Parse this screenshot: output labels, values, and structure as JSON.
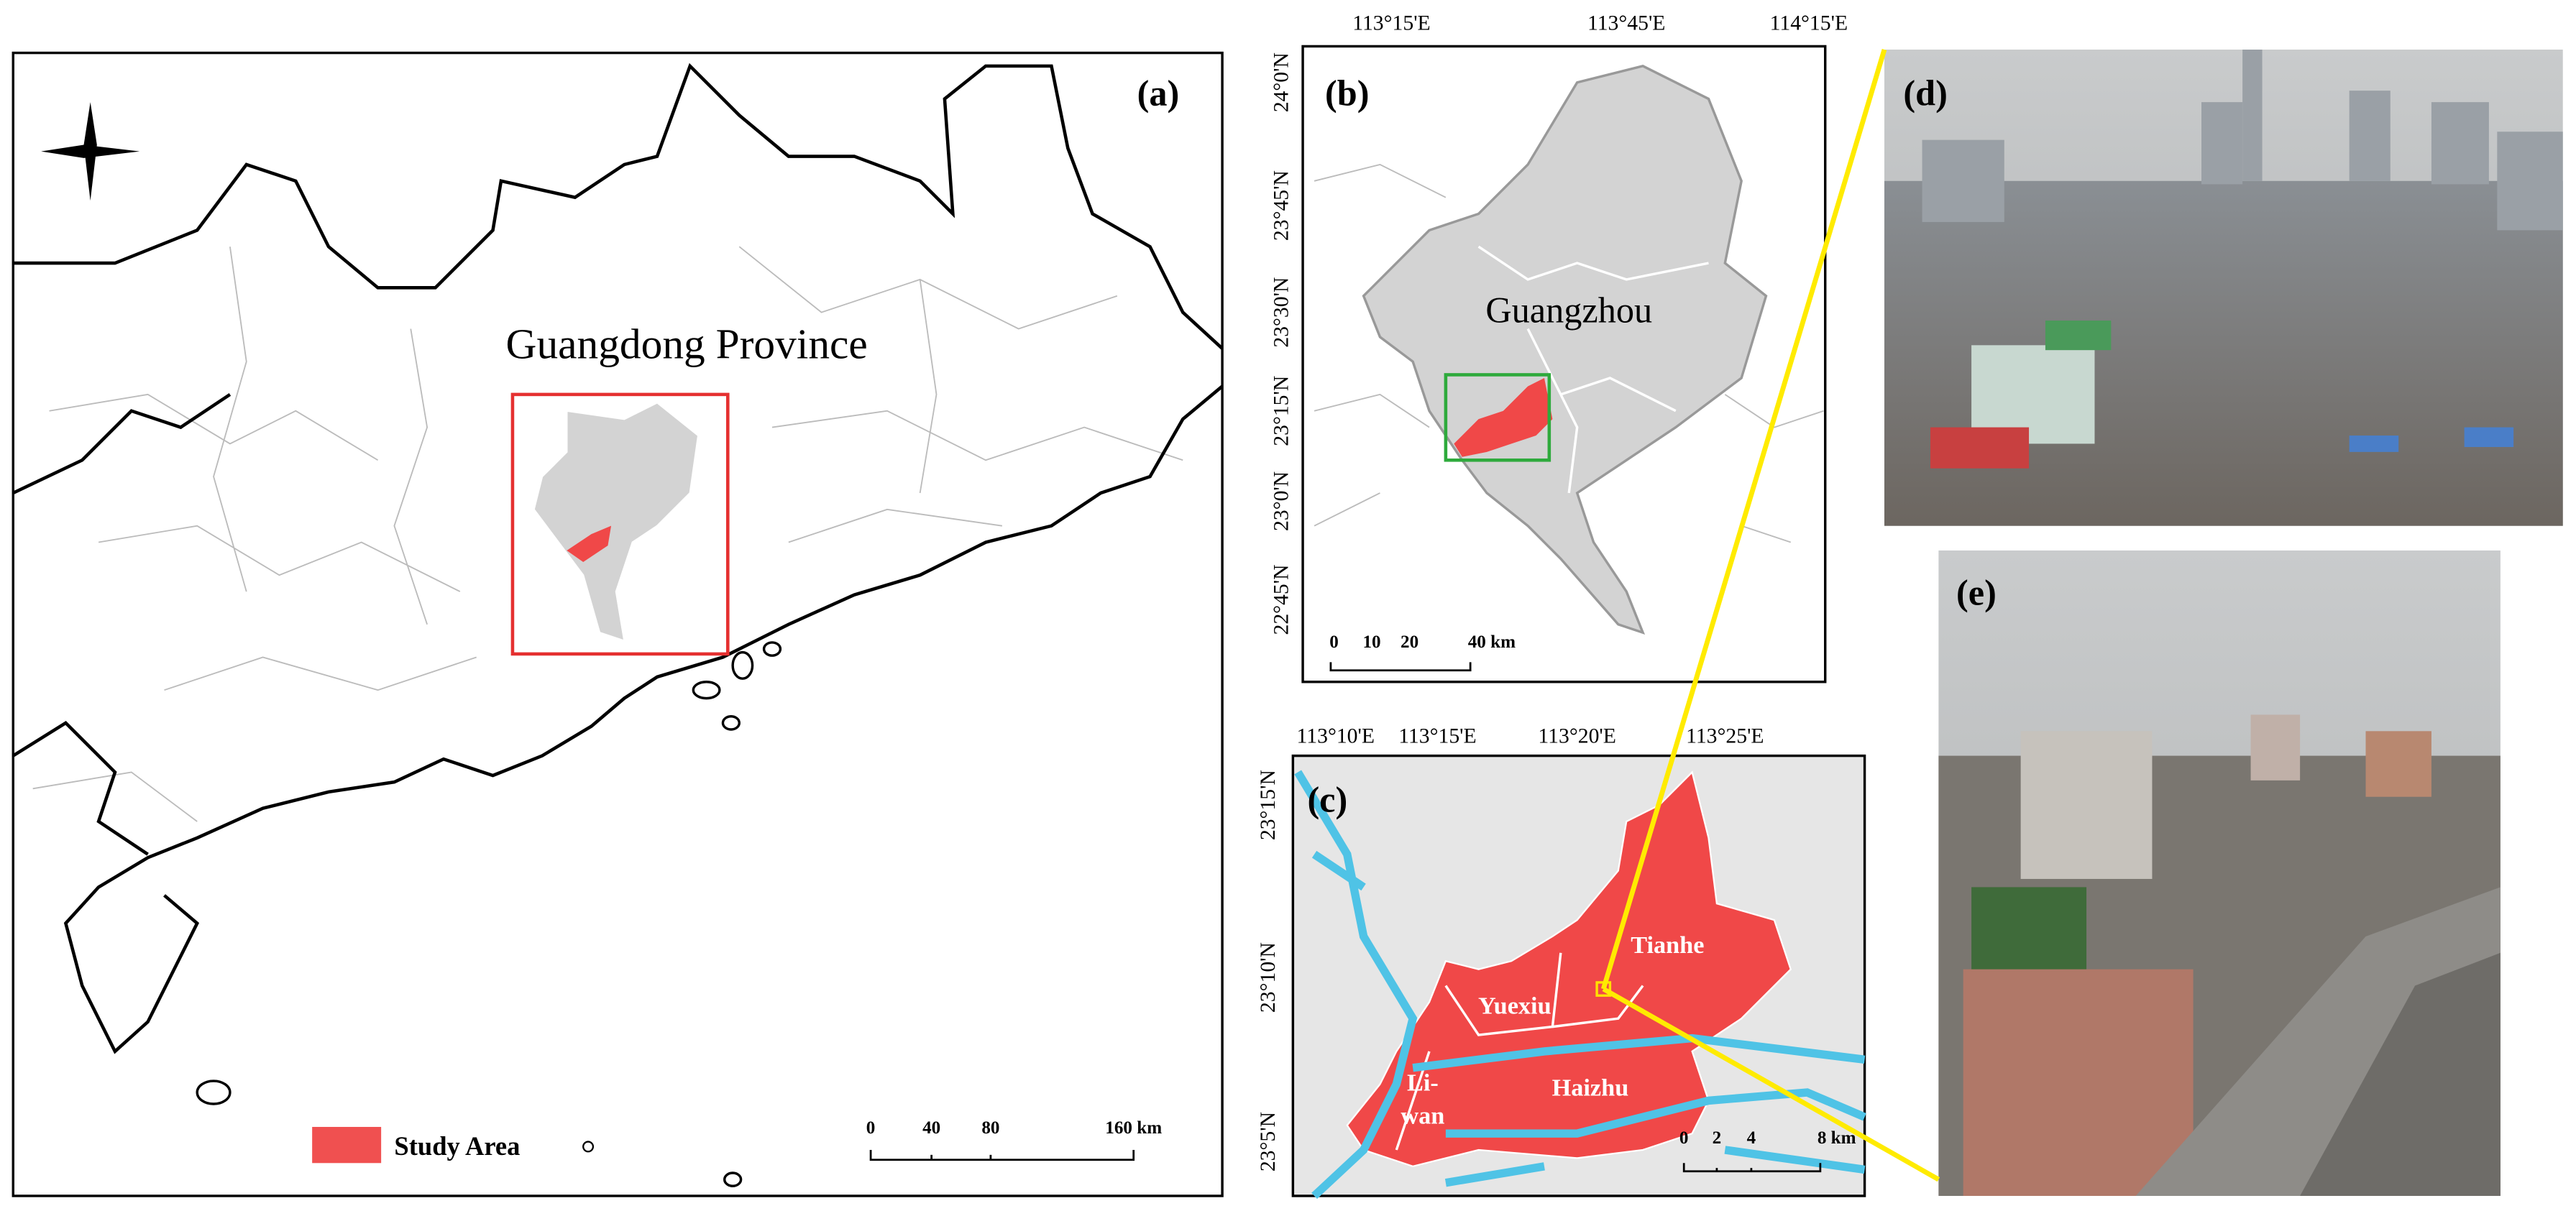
{
  "panel_a": {
    "label": "(a)",
    "title": "Guangdong Province",
    "legend": "Study Area",
    "scale": [
      "0",
      "40",
      "80",
      "160 km"
    ]
  },
  "panel_b": {
    "label": "(b)",
    "place": "Guangzhou",
    "lon_ticks": [
      "113°15'E",
      "113°45'E",
      "114°15'E"
    ],
    "lat_ticks": [
      "24°0'N",
      "23°45'N",
      "23°30'N",
      "23°15'N",
      "23°0'N",
      "22°45'N"
    ],
    "scale": [
      "0",
      "10",
      "20",
      "40 km"
    ]
  },
  "panel_c": {
    "label": "(c)",
    "lon_ticks": [
      "113°10'E",
      "113°15'E",
      "113°20'E",
      "113°25'E"
    ],
    "lat_ticks": [
      "23°15'N",
      "23°10'N",
      "23°5'N"
    ],
    "districts": [
      "Tianhe",
      "Yuexiu",
      "Haizhu"
    ],
    "liwan": [
      "Li-",
      "wan"
    ],
    "scale": [
      "0",
      "2",
      "4",
      "8 km"
    ]
  },
  "panel_d": {
    "label": "(d)"
  },
  "panel_e": {
    "label": "(e)"
  }
}
